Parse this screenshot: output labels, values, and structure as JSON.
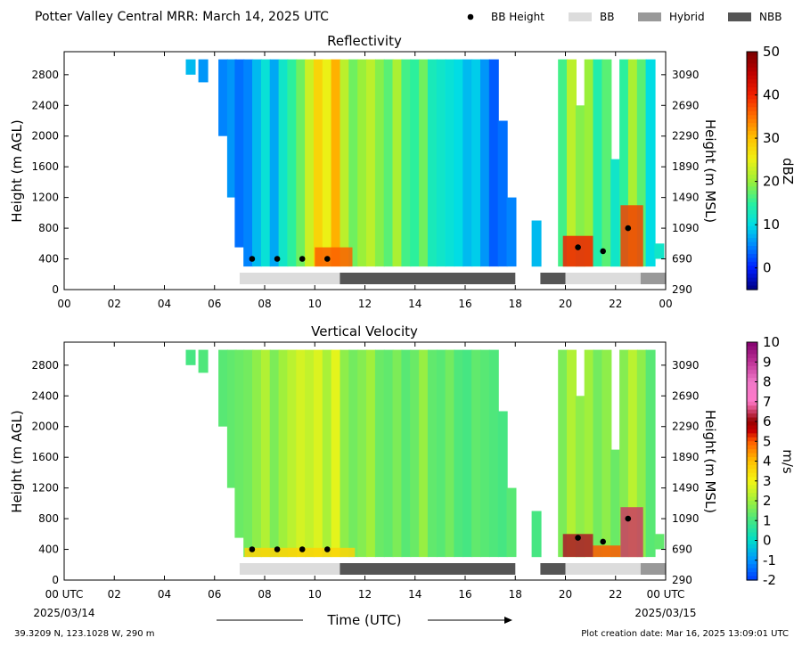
{
  "header": {
    "title": "Potter Valley Central MRR:  March 14, 2025 UTC",
    "legend": [
      {
        "label": "BB Height",
        "kind": "dot",
        "color": "#000000"
      },
      {
        "label": "BB",
        "kind": "box",
        "color": "#dcdcdc"
      },
      {
        "label": "Hybrid",
        "kind": "box",
        "color": "#999999"
      },
      {
        "label": "NBB",
        "kind": "box",
        "color": "#555555"
      }
    ]
  },
  "footer": {
    "location": "39.3209 N, 123.1028 W, 290 m",
    "creation": "Plot creation date: Mar 16, 2025 13:09:01 UTC",
    "start_date": "2025/03/14",
    "end_date": "2025/03/15"
  },
  "chart_data": [
    {
      "type": "heatmap",
      "title": "Reflectivity",
      "ylabel": "Height (m AGL)",
      "y2label": "Height (m MSL)",
      "xlabel": "",
      "xlim": [
        0,
        24
      ],
      "ylim": [
        0,
        3100
      ],
      "x_ticks": [
        "00",
        "02",
        "04",
        "06",
        "08",
        "10",
        "12",
        "14",
        "16",
        "18",
        "20",
        "22",
        "00"
      ],
      "y_ticks": [
        0,
        400,
        800,
        1200,
        1600,
        2000,
        2400,
        2800
      ],
      "y2_ticks": [
        290,
        690,
        1090,
        1490,
        1890,
        2290,
        2690,
        3090
      ],
      "colorbar": {
        "label": "dBZ",
        "min": -5,
        "max": 50,
        "ticks": [
          0,
          10,
          20,
          30,
          40,
          50
        ]
      },
      "bb_heights": [
        {
          "time": 7.5,
          "height": 400
        },
        {
          "time": 8.5,
          "height": 400
        },
        {
          "time": 9.5,
          "height": 400
        },
        {
          "time": 10.5,
          "height": 400
        },
        {
          "time": 20.5,
          "height": 550
        },
        {
          "time": 21.5,
          "height": 500
        },
        {
          "time": 22.5,
          "height": 800
        }
      ],
      "bb_types": [
        {
          "start": 7.0,
          "end": 11.0,
          "type": "BB"
        },
        {
          "start": 11.0,
          "end": 18.0,
          "type": "NBB"
        },
        {
          "start": 19.0,
          "end": 20.0,
          "type": "NBB"
        },
        {
          "start": 20.0,
          "end": 23.0,
          "type": "BB"
        },
        {
          "start": 23.0,
          "end": 24.0,
          "type": "Hybrid"
        }
      ],
      "echo_columns": [
        {
          "time": 5.05,
          "top": 3000,
          "bottom": 2800,
          "value": 8
        },
        {
          "time": 5.55,
          "top": 3000,
          "bottom": 2700,
          "value": 6
        },
        {
          "time": 6.35,
          "top": 3000,
          "bottom": 2000,
          "value": 5
        },
        {
          "time": 6.7,
          "top": 3000,
          "bottom": 1200,
          "value": 6
        },
        {
          "time": 7.0,
          "top": 3000,
          "bottom": 550,
          "value": 4
        },
        {
          "time": 7.35,
          "top": 3000,
          "bottom": 300,
          "value": 5
        },
        {
          "time": 7.7,
          "top": 3000,
          "bottom": 300,
          "value": 8
        },
        {
          "time": 8.05,
          "top": 3000,
          "bottom": 300,
          "value": 11
        },
        {
          "time": 8.4,
          "top": 3000,
          "bottom": 300,
          "value": 7
        },
        {
          "time": 8.75,
          "top": 3000,
          "bottom": 300,
          "value": 12
        },
        {
          "time": 9.1,
          "top": 3000,
          "bottom": 300,
          "value": 15
        },
        {
          "time": 9.45,
          "top": 3000,
          "bottom": 300,
          "value": 18
        },
        {
          "time": 9.8,
          "top": 3000,
          "bottom": 300,
          "value": 23
        },
        {
          "time": 10.15,
          "top": 3000,
          "bottom": 300,
          "value": 28
        },
        {
          "time": 10.5,
          "top": 3000,
          "bottom": 300,
          "value": 25
        },
        {
          "time": 10.85,
          "top": 3000,
          "bottom": 300,
          "value": 31
        },
        {
          "time": 11.2,
          "top": 3000,
          "bottom": 300,
          "value": 22
        },
        {
          "time": 11.55,
          "top": 3000,
          "bottom": 300,
          "value": 18
        },
        {
          "time": 11.9,
          "top": 3000,
          "bottom": 300,
          "value": 20
        },
        {
          "time": 12.25,
          "top": 3000,
          "bottom": 300,
          "value": 22
        },
        {
          "time": 12.6,
          "top": 3000,
          "bottom": 300,
          "value": 19
        },
        {
          "time": 12.95,
          "top": 3000,
          "bottom": 300,
          "value": 17
        },
        {
          "time": 13.3,
          "top": 3000,
          "bottom": 300,
          "value": 21
        },
        {
          "time": 13.65,
          "top": 3000,
          "bottom": 300,
          "value": 16
        },
        {
          "time": 14.0,
          "top": 3000,
          "bottom": 300,
          "value": 15
        },
        {
          "time": 14.35,
          "top": 3000,
          "bottom": 300,
          "value": 18
        },
        {
          "time": 14.7,
          "top": 3000,
          "bottom": 300,
          "value": 13
        },
        {
          "time": 15.05,
          "top": 3000,
          "bottom": 300,
          "value": 12
        },
        {
          "time": 15.4,
          "top": 3000,
          "bottom": 300,
          "value": 11
        },
        {
          "time": 15.75,
          "top": 3000,
          "bottom": 300,
          "value": 10
        },
        {
          "time": 16.1,
          "top": 3000,
          "bottom": 300,
          "value": 8
        },
        {
          "time": 16.45,
          "top": 3000,
          "bottom": 300,
          "value": 9
        },
        {
          "time": 16.8,
          "top": 3000,
          "bottom": 300,
          "value": 6
        },
        {
          "time": 17.15,
          "top": 3000,
          "bottom": 300,
          "value": 3
        },
        {
          "time": 17.5,
          "top": 2200,
          "bottom": 300,
          "value": 4
        },
        {
          "time": 17.85,
          "top": 1200,
          "bottom": 300,
          "value": 5
        },
        {
          "time": 18.85,
          "top": 900,
          "bottom": 300,
          "value": 8
        },
        {
          "time": 19.9,
          "top": 3000,
          "bottom": 300,
          "value": 16
        },
        {
          "time": 20.25,
          "top": 3000,
          "bottom": 300,
          "value": 22
        },
        {
          "time": 20.6,
          "top": 2400,
          "bottom": 300,
          "value": 19
        },
        {
          "time": 20.95,
          "top": 3000,
          "bottom": 300,
          "value": 20
        },
        {
          "time": 21.3,
          "top": 3000,
          "bottom": 300,
          "value": 14
        },
        {
          "time": 21.65,
          "top": 3000,
          "bottom": 300,
          "value": 17
        },
        {
          "time": 22.0,
          "top": 1700,
          "bottom": 300,
          "value": 12
        },
        {
          "time": 22.35,
          "top": 3000,
          "bottom": 300,
          "value": 15
        },
        {
          "time": 22.7,
          "top": 3000,
          "bottom": 300,
          "value": 21
        },
        {
          "time": 23.05,
          "top": 3000,
          "bottom": 300,
          "value": 17
        },
        {
          "time": 23.4,
          "top": 3000,
          "bottom": 300,
          "value": 10
        },
        {
          "time": 23.75,
          "top": 600,
          "bottom": 400,
          "value": 12
        }
      ],
      "near_surface_enhancement": [
        {
          "start": 10.0,
          "end": 11.5,
          "top": 550,
          "value": 36
        },
        {
          "start": 19.9,
          "end": 21.1,
          "top": 700,
          "value": 40
        },
        {
          "start": 22.2,
          "end": 23.1,
          "top": 1100,
          "value": 38
        }
      ]
    },
    {
      "type": "heatmap",
      "title": "Vertical Velocity",
      "ylabel": "Height (m AGL)",
      "y2label": "Height (m MSL)",
      "xlabel": "Time (UTC)",
      "xlim": [
        0,
        24
      ],
      "ylim": [
        0,
        3100
      ],
      "x_ticks": [
        "00 UTC",
        "02",
        "04",
        "06",
        "08",
        "10",
        "12",
        "14",
        "16",
        "18",
        "20",
        "22",
        "00 UTC"
      ],
      "y_ticks": [
        0,
        400,
        800,
        1200,
        1600,
        2000,
        2400,
        2800
      ],
      "y2_ticks": [
        290,
        690,
        1090,
        1490,
        1890,
        2290,
        2690,
        3090
      ],
      "colorbar": {
        "label": "m/s",
        "min": -2,
        "max": 10,
        "ticks": [
          -2,
          -1,
          0,
          1,
          2,
          3,
          4,
          5,
          6,
          7,
          8,
          9,
          10
        ]
      },
      "bb_heights": [
        {
          "time": 7.5,
          "height": 400
        },
        {
          "time": 8.5,
          "height": 400
        },
        {
          "time": 9.5,
          "height": 400
        },
        {
          "time": 10.5,
          "height": 400
        },
        {
          "time": 20.5,
          "height": 550
        },
        {
          "time": 21.5,
          "height": 500
        },
        {
          "time": 22.5,
          "height": 800
        }
      ],
      "bb_types": [
        {
          "start": 7.0,
          "end": 11.0,
          "type": "BB"
        },
        {
          "start": 11.0,
          "end": 18.0,
          "type": "NBB"
        },
        {
          "start": 19.0,
          "end": 20.0,
          "type": "NBB"
        },
        {
          "start": 20.0,
          "end": 23.0,
          "type": "BB"
        },
        {
          "start": 23.0,
          "end": 24.0,
          "type": "Hybrid"
        }
      ],
      "echo_columns": [
        {
          "time": 5.05,
          "top": 3000,
          "bottom": 2800,
          "value": 1.0
        },
        {
          "time": 5.55,
          "top": 3000,
          "bottom": 2700,
          "value": 1.1
        },
        {
          "time": 6.35,
          "top": 3000,
          "bottom": 2000,
          "value": 1.2
        },
        {
          "time": 6.7,
          "top": 3000,
          "bottom": 1200,
          "value": 1.3
        },
        {
          "time": 7.0,
          "top": 3000,
          "bottom": 550,
          "value": 1.4
        },
        {
          "time": 7.35,
          "top": 3000,
          "bottom": 300,
          "value": 1.5
        },
        {
          "time": 7.7,
          "top": 3000,
          "bottom": 300,
          "value": 1.8
        },
        {
          "time": 8.05,
          "top": 3000,
          "bottom": 300,
          "value": 2.2
        },
        {
          "time": 8.4,
          "top": 3000,
          "bottom": 300,
          "value": 1.6
        },
        {
          "time": 8.75,
          "top": 3000,
          "bottom": 300,
          "value": 2.0
        },
        {
          "time": 9.1,
          "top": 3000,
          "bottom": 300,
          "value": 2.3
        },
        {
          "time": 9.45,
          "top": 3000,
          "bottom": 300,
          "value": 2.6
        },
        {
          "time": 9.8,
          "top": 3000,
          "bottom": 300,
          "value": 2.4
        },
        {
          "time": 10.15,
          "top": 3000,
          "bottom": 300,
          "value": 2.7
        },
        {
          "time": 10.5,
          "top": 3000,
          "bottom": 300,
          "value": 2.1
        },
        {
          "time": 10.85,
          "top": 3000,
          "bottom": 300,
          "value": 2.8
        },
        {
          "time": 11.2,
          "top": 3000,
          "bottom": 300,
          "value": 1.8
        },
        {
          "time": 11.55,
          "top": 3000,
          "bottom": 300,
          "value": 1.5
        },
        {
          "time": 11.9,
          "top": 3000,
          "bottom": 300,
          "value": 1.7
        },
        {
          "time": 12.25,
          "top": 3000,
          "bottom": 300,
          "value": 2.0
        },
        {
          "time": 12.6,
          "top": 3000,
          "bottom": 300,
          "value": 1.4
        },
        {
          "time": 12.95,
          "top": 3000,
          "bottom": 300,
          "value": 1.3
        },
        {
          "time": 13.3,
          "top": 3000,
          "bottom": 300,
          "value": 1.6
        },
        {
          "time": 13.65,
          "top": 3000,
          "bottom": 300,
          "value": 1.2
        },
        {
          "time": 14.0,
          "top": 3000,
          "bottom": 300,
          "value": 1.4
        },
        {
          "time": 14.35,
          "top": 3000,
          "bottom": 300,
          "value": 1.9
        },
        {
          "time": 14.7,
          "top": 3000,
          "bottom": 300,
          "value": 1.3
        },
        {
          "time": 15.05,
          "top": 3000,
          "bottom": 300,
          "value": 1.2
        },
        {
          "time": 15.4,
          "top": 3000,
          "bottom": 300,
          "value": 1.5
        },
        {
          "time": 15.75,
          "top": 3000,
          "bottom": 300,
          "value": 1.1
        },
        {
          "time": 16.1,
          "top": 3000,
          "bottom": 300,
          "value": 1.0
        },
        {
          "time": 16.45,
          "top": 3000,
          "bottom": 300,
          "value": 1.3
        },
        {
          "time": 16.8,
          "top": 3000,
          "bottom": 300,
          "value": 1.2
        },
        {
          "time": 17.15,
          "top": 3000,
          "bottom": 300,
          "value": 1.1
        },
        {
          "time": 17.5,
          "top": 2200,
          "bottom": 300,
          "value": 1.0
        },
        {
          "time": 17.85,
          "top": 1200,
          "bottom": 300,
          "value": 1.2
        },
        {
          "time": 18.85,
          "top": 900,
          "bottom": 300,
          "value": 1.0
        },
        {
          "time": 19.9,
          "top": 3000,
          "bottom": 300,
          "value": 1.6
        },
        {
          "time": 20.25,
          "top": 3000,
          "bottom": 300,
          "value": 2.2
        },
        {
          "time": 20.6,
          "top": 2400,
          "bottom": 300,
          "value": 1.8
        },
        {
          "time": 20.95,
          "top": 3000,
          "bottom": 300,
          "value": 2.0
        },
        {
          "time": 21.3,
          "top": 3000,
          "bottom": 300,
          "value": 1.5
        },
        {
          "time": 21.65,
          "top": 3000,
          "bottom": 300,
          "value": 1.8
        },
        {
          "time": 22.0,
          "top": 1700,
          "bottom": 300,
          "value": 1.4
        },
        {
          "time": 22.35,
          "top": 3000,
          "bottom": 300,
          "value": 1.7
        },
        {
          "time": 22.7,
          "top": 3000,
          "bottom": 300,
          "value": 2.3
        },
        {
          "time": 23.05,
          "top": 3000,
          "bottom": 300,
          "value": 1.8
        },
        {
          "time": 23.4,
          "top": 3000,
          "bottom": 300,
          "value": 1.2
        },
        {
          "time": 23.75,
          "top": 600,
          "bottom": 400,
          "value": 1.3
        }
      ],
      "near_surface_enhancement": [
        {
          "start": 7.2,
          "end": 11.6,
          "top": 420,
          "value": 3.6
        },
        {
          "start": 19.9,
          "end": 21.1,
          "top": 600,
          "value": 6.2
        },
        {
          "start": 21.1,
          "end": 22.2,
          "top": 450,
          "value": 5.0
        },
        {
          "start": 22.2,
          "end": 23.1,
          "top": 950,
          "value": 6.5
        }
      ]
    }
  ]
}
